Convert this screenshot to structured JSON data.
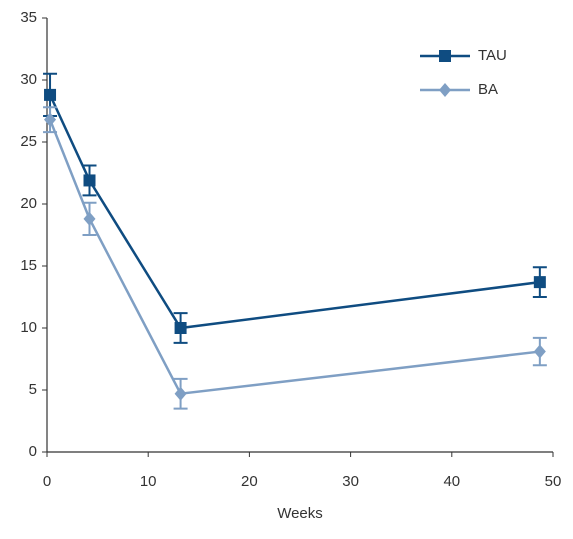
{
  "chart_data": {
    "type": "line",
    "x_label": "Weeks",
    "x": [
      0.3,
      4.2,
      13.2,
      48.7
    ],
    "series": [
      {
        "name": "TAU",
        "color": "#0f4c81",
        "marker": "square",
        "values": [
          28.8,
          21.9,
          10.0,
          13.7
        ],
        "errors": [
          1.7,
          1.2,
          1.2,
          1.2
        ]
      },
      {
        "name": "BA",
        "color": "#7f9fc4",
        "marker": "diamond",
        "values": [
          26.8,
          18.8,
          4.7,
          8.1
        ],
        "errors": [
          1.0,
          1.3,
          1.2,
          1.1
        ]
      }
    ],
    "xlim": [
      0,
      50
    ],
    "xticks": [
      0,
      10,
      20,
      30,
      40,
      50
    ],
    "ylim": [
      0,
      35
    ],
    "yticks": [
      0,
      5,
      10,
      15,
      20,
      25,
      30,
      35
    ],
    "grid": false,
    "legend": "upper right"
  }
}
